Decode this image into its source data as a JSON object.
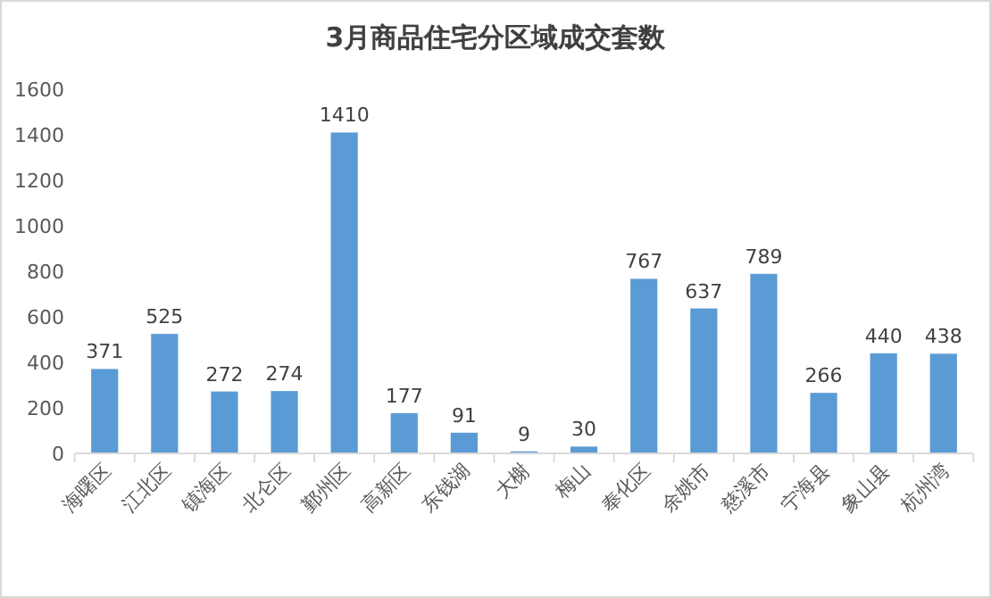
{
  "chart_data": {
    "type": "bar",
    "title": "3月商品住宅分区域成交套数",
    "categories": [
      "海曙区",
      "江北区",
      "镇海区",
      "北仑区",
      "鄞州区",
      "高新区",
      "东钱湖",
      "大榭",
      "梅山",
      "奉化区",
      "余姚市",
      "慈溪市",
      "宁海县",
      "象山县",
      "杭州湾"
    ],
    "values": [
      371,
      525,
      272,
      274,
      1410,
      177,
      91,
      9,
      30,
      767,
      637,
      789,
      266,
      440,
      438
    ],
    "color": "#5b9bd5",
    "ylim": [
      0,
      1600
    ],
    "yticks": [
      0,
      200,
      400,
      600,
      800,
      1000,
      1200,
      1400,
      1600
    ],
    "grid": false,
    "data_labels": true
  }
}
